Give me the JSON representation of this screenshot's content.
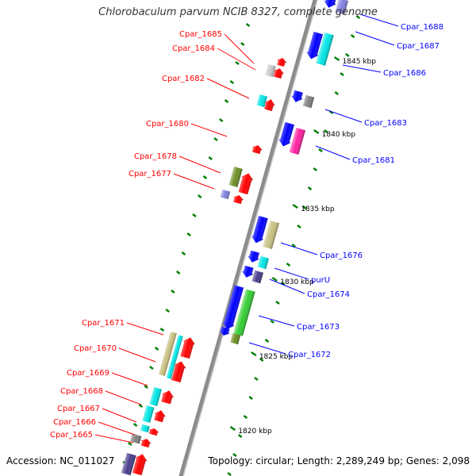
{
  "header": {
    "title": "Chlorobaculum parvum NCIB 8327, complete genome"
  },
  "footer": {
    "accession": "Accession: NC_011027",
    "summary": "Topology: circular; Length: 2,289,249 bp; Genes: 2,098"
  },
  "colors": {
    "left_label": "#ff0000",
    "right_label": "#0000ff",
    "backbone": "#8c8c8c",
    "tick": "#008000",
    "gene_blue": "#0000ff",
    "gene_red": "#ff0000",
    "gene_cyan": "#00e5e5",
    "gene_khaki": "#c8c080",
    "gene_olive": "#6b8e23",
    "gene_lavender": "#8080e0",
    "gene_darkslate": "#483d8b",
    "gene_gray": "#808080",
    "gene_silver": "#c8c8c8",
    "gene_magenta": "#ff1fa0",
    "gene_green": "#32cd32"
  },
  "scale_labels": [
    "1845 kbp",
    "1840 kbp",
    "1835 kbp",
    "1830 kbp",
    "1825 kbp",
    "1820 kbp"
  ],
  "left_genes": [
    "Cpar_1685",
    "Cpar_1684",
    "Cpar_1682",
    "Cpar_1680",
    "Cpar_1678",
    "Cpar_1677",
    "Cpar_1671",
    "Cpar_1670",
    "Cpar_1669",
    "Cpar_1668",
    "Cpar_1667",
    "Cpar_1666",
    "Cpar_1665"
  ],
  "right_genes": [
    "Cpar_1688",
    "Cpar_1687",
    "Cpar_1686",
    "Cpar_1683",
    "Cpar_1681",
    "Cpar_1676",
    "purU",
    "Cpar_1674",
    "Cpar_1673",
    "Cpar_1672"
  ]
}
